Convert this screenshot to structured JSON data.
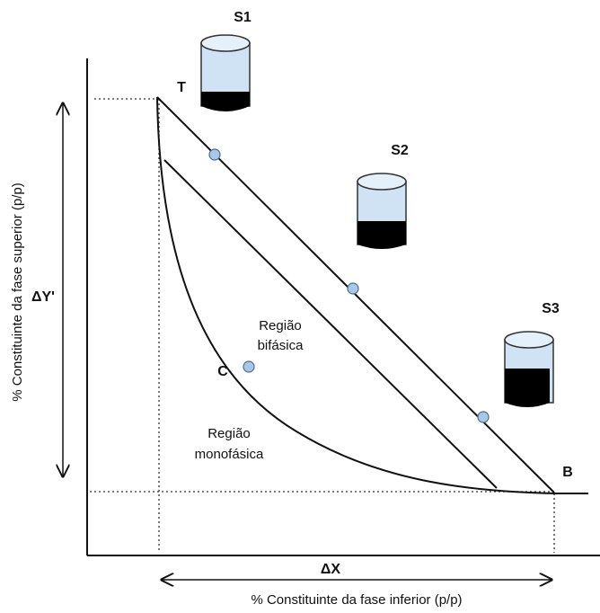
{
  "samples": [
    "S1",
    "S2",
    "S3"
  ],
  "points": {
    "top": "T",
    "bottom": "B",
    "critical": "C"
  },
  "regions": {
    "biphasic": [
      "Região",
      "bifásica"
    ],
    "monophasic": [
      "Região",
      "monofásica"
    ]
  },
  "axes": {
    "y_label": "% Constituinte  da fase superior (p/p)",
    "x_label": "% Constituinte  da fase inferior (p/p)",
    "delta_y": "ΔY'",
    "delta_x": "ΔX"
  }
}
